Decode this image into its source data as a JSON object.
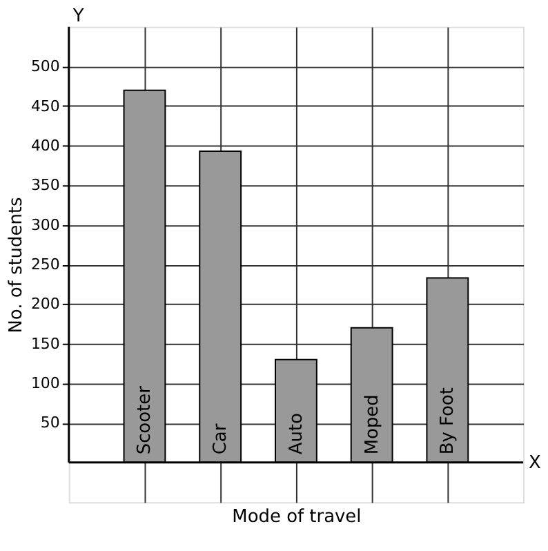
{
  "chart_data": {
    "type": "bar",
    "xlabel": "Mode of travel",
    "ylabel": "No. of students",
    "categories": [
      "Scooter",
      "Car",
      "Auto",
      "Moped",
      "By Foot"
    ],
    "values": [
      470,
      393,
      130,
      170,
      233
    ],
    "color": "#999999",
    "ylim": [
      -50,
      550
    ],
    "yticks": [
      50,
      100,
      150,
      200,
      250,
      300,
      350,
      400,
      450,
      500
    ],
    "grid": true,
    "annotations": [
      "X",
      "Y"
    ]
  }
}
